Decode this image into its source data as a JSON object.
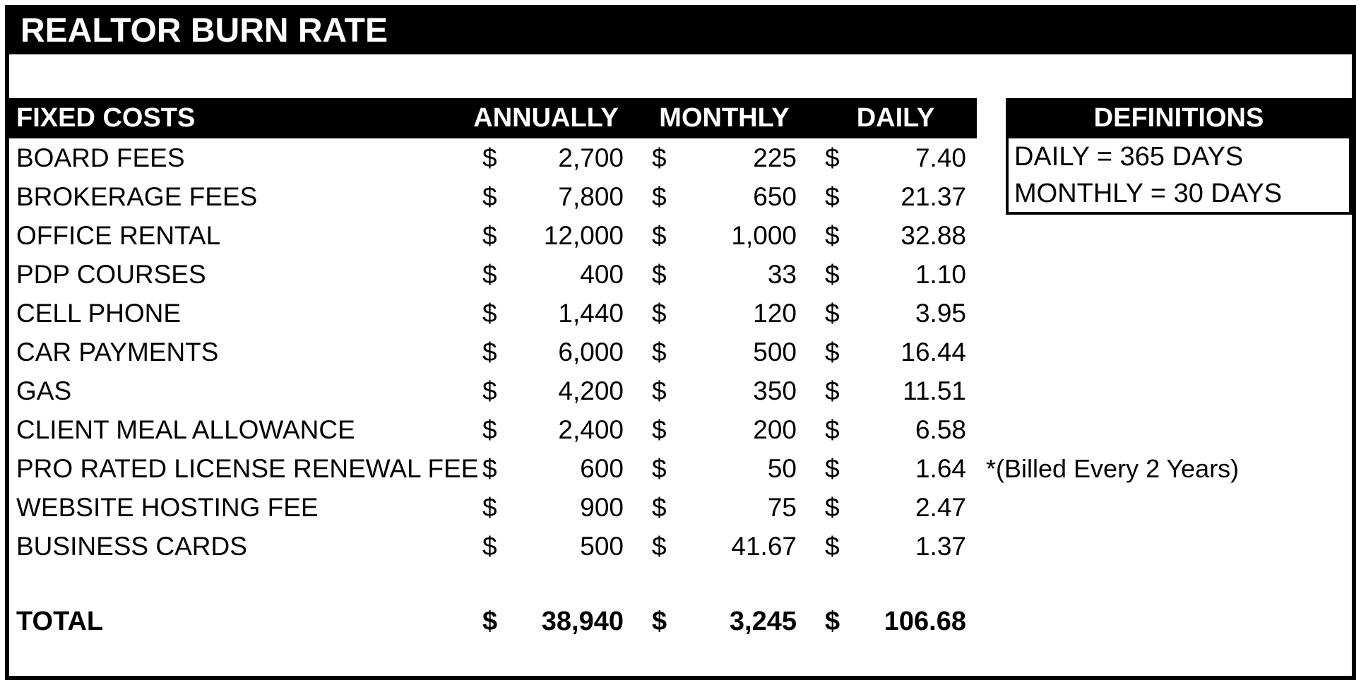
{
  "title": "REALTOR BURN RATE",
  "currency": "$",
  "table": {
    "header": {
      "label": "FIXED COSTS",
      "annually": "ANNUALLY",
      "monthly": "MONTHLY",
      "daily": "DAILY"
    },
    "rows": [
      {
        "label": "BOARD FEES",
        "annually": "2,700",
        "monthly": "225",
        "daily": "7.40",
        "note": ""
      },
      {
        "label": "BROKERAGE FEES",
        "annually": "7,800",
        "monthly": "650",
        "daily": "21.37",
        "note": ""
      },
      {
        "label": "OFFICE RENTAL",
        "annually": "12,000",
        "monthly": "1,000",
        "daily": "32.88",
        "note": ""
      },
      {
        "label": "PDP COURSES",
        "annually": "400",
        "monthly": "33",
        "daily": "1.10",
        "note": ""
      },
      {
        "label": "CELL PHONE",
        "annually": "1,440",
        "monthly": "120",
        "daily": "3.95",
        "note": ""
      },
      {
        "label": "CAR PAYMENTS",
        "annually": "6,000",
        "monthly": "500",
        "daily": "16.44",
        "note": ""
      },
      {
        "label": "GAS",
        "annually": "4,200",
        "monthly": "350",
        "daily": "11.51",
        "note": ""
      },
      {
        "label": "CLIENT MEAL ALLOWANCE",
        "annually": "2,400",
        "monthly": "200",
        "daily": "6.58",
        "note": ""
      },
      {
        "label": "PRO RATED LICENSE RENEWAL FEE",
        "annually": "600",
        "monthly": "50",
        "daily": "1.64",
        "note": "*(Billed Every 2 Years)"
      },
      {
        "label": "WEBSITE HOSTING FEE",
        "annually": "900",
        "monthly": "75",
        "daily": "2.47",
        "note": ""
      },
      {
        "label": "BUSINESS CARDS",
        "annually": "500",
        "monthly": "41.67",
        "daily": "1.37",
        "note": ""
      }
    ],
    "total": {
      "label": "TOTAL",
      "annually": "38,940",
      "monthly": "3,245",
      "daily": "106.68"
    }
  },
  "definitions": {
    "title": "DEFINITIONS",
    "items": [
      "DAILY = 365 DAYS",
      "MONTHLY = 30 DAYS"
    ]
  },
  "colors": {
    "header_bg": "#000000",
    "header_text": "#ffffff"
  }
}
